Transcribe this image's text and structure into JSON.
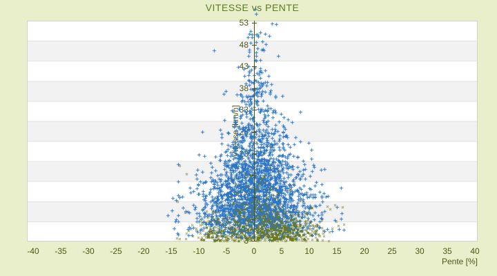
{
  "chart_data": {
    "type": "scatter",
    "title": "VITESSE vs PENTE",
    "xlabel": "Pente [%]",
    "ylabel": "Vitesse [km/h]",
    "xlim": [
      -41.1,
      40.5
    ],
    "ylim": [
      2.85,
      53.6
    ],
    "x_ticks": [
      -40,
      -35,
      -30,
      -25,
      -20,
      -15,
      -10,
      -5,
      0,
      5,
      10,
      15,
      20,
      25,
      30,
      35,
      40
    ],
    "y_ticks": [
      3,
      8,
      13,
      18,
      23,
      28,
      33,
      38,
      43,
      48,
      53
    ],
    "grid": "horizontal alternating bands",
    "zero_axis_at_x": 0,
    "legend": "none",
    "seed": 7,
    "series": [
      {
        "name": "vitesse-vs-pente-primary",
        "color": "#2e76c6",
        "marker": "plus",
        "marker_size": 5,
        "clusters": [
          {
            "n": 2400,
            "x": {
              "mu": 0.4,
              "sigma": 6.2,
              "clip": [
                -16.5,
                16.5
              ],
              "taper": {
                "v0": 3,
                "rate": 0.0208,
                "min_frac": 0.18
              }
            },
            "v": {
              "model": "gamma2",
              "base": 3,
              "theta": 6.3,
              "clip": [
                3,
                53.5
              ]
            }
          }
        ],
        "outliers": [
          [
            0.2,
            56.2
          ],
          [
            0.4,
            55.0
          ],
          [
            3.3,
            52.9
          ],
          [
            -2.9,
            42.9
          ],
          [
            -7.3,
            46.7
          ],
          [
            -13.8,
            20.5
          ],
          [
            15.8,
            8.0
          ],
          [
            16.2,
            5.5
          ]
        ]
      },
      {
        "name": "vitesse-vs-pente-secondary",
        "color": "#6d791e",
        "marker": "x",
        "marker_size": 3,
        "clusters": [
          {
            "n": 370,
            "x": {
              "mu": 5.5,
              "sigma": 3.2,
              "clip": [
                0.3,
                16.5
              ]
            },
            "v": {
              "model": "halfnormal",
              "base": 3,
              "sigma": 3.4,
              "clip": [
                3,
                17
              ]
            }
          },
          {
            "n": 210,
            "x": {
              "mu": -4.5,
              "sigma": 3.3,
              "clip": [
                -14.5,
                -0.2
              ]
            },
            "v": {
              "model": "halfnormal",
              "base": 3,
              "sigma": 3.2,
              "clip": [
                3,
                18
              ]
            }
          },
          {
            "n": 170,
            "x": {
              "mu": 0.2,
              "sigma": 2.3,
              "clip": [
                -8,
                8
              ]
            },
            "v": {
              "model": "halfnormal",
              "base": 3,
              "sigma": 8.5,
              "clip": [
                3,
                34
              ]
            }
          },
          {
            "n": 100,
            "x": {
              "mu": 0.0,
              "sigma": 7.5,
              "clip": [
                -15.5,
                16.5
              ]
            },
            "v": {
              "model": "halfnormal",
              "base": 3,
              "sigma": 5.0,
              "clip": [
                3,
                22
              ]
            }
          }
        ],
        "outliers": [
          [
            13.2,
            10.9
          ],
          [
            14.6,
            11.2
          ],
          [
            16.0,
            10.7
          ],
          [
            -13.5,
            20.2
          ]
        ]
      }
    ],
    "style": {
      "page_bg": "#e9efcb",
      "band_light": "#ffffff",
      "band_dark": "#f2f2f2",
      "band_line": "#e3e3e3",
      "plot_border": "#d2d2d2",
      "axis_line_color": "#4a5314",
      "tick_text_color": "#4c581a",
      "title_color": "#5d7b20"
    }
  }
}
